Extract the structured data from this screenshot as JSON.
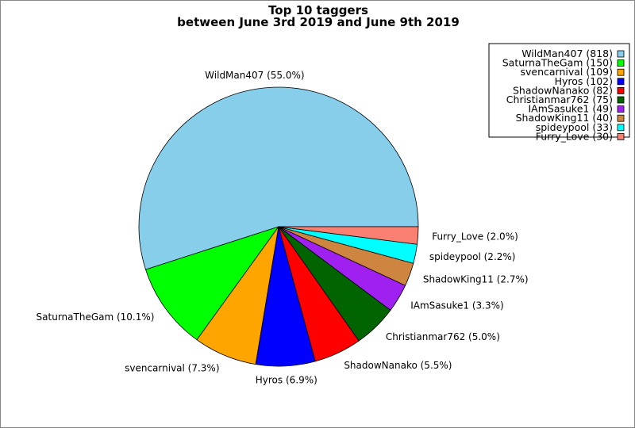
{
  "chart_data": {
    "type": "pie",
    "title": "Top 10 taggers",
    "subtitle": "between June 3rd 2019 and June 9th 2019",
    "start_angle_deg": 0,
    "direction": "counterclockwise",
    "legend_position": "top-right",
    "slices": [
      {
        "name": "WildMan407",
        "value": 818,
        "percent_label": "WildMan407 (55.0%)",
        "legend_label": "WildMan407 (818)",
        "color": "#87ceeb"
      },
      {
        "name": "SaturnaTheGam",
        "value": 150,
        "percent_label": "SaturnaTheGam (10.1%)",
        "legend_label": "SaturnaTheGam (150)",
        "color": "#00ff00"
      },
      {
        "name": "svencarnival",
        "value": 109,
        "percent_label": "svencarnival (7.3%)",
        "legend_label": "svencarnival (109)",
        "color": "#ffa500"
      },
      {
        "name": "Hyros",
        "value": 102,
        "percent_label": "Hyros (6.9%)",
        "legend_label": "Hyros (102)",
        "color": "#0000ff"
      },
      {
        "name": "ShadowNanako",
        "value": 82,
        "percent_label": "ShadowNanako (5.5%)",
        "legend_label": "ShadowNanako (82)",
        "color": "#ff0000"
      },
      {
        "name": "Christianmar762",
        "value": 75,
        "percent_label": "Christianmar762 (5.0%)",
        "legend_label": "Christianmar762 (75)",
        "color": "#006400"
      },
      {
        "name": "IAmSasuke1",
        "value": 49,
        "percent_label": "IAmSasuke1 (3.3%)",
        "legend_label": "IAmSasuke1 (49)",
        "color": "#a020f0"
      },
      {
        "name": "ShadowKing11",
        "value": 40,
        "percent_label": "ShadowKing11 (2.7%)",
        "legend_label": "ShadowKing11 (40)",
        "color": "#cd853f"
      },
      {
        "name": "spideypool",
        "value": 33,
        "percent_label": "spideypool (2.2%)",
        "legend_label": "spideypool (33)",
        "color": "#00ffff"
      },
      {
        "name": "Furry_Love",
        "value": 30,
        "percent_label": "Furry_Love (2.0%)",
        "legend_label": "Furry_Love (30)",
        "color": "#fa8072"
      }
    ]
  }
}
